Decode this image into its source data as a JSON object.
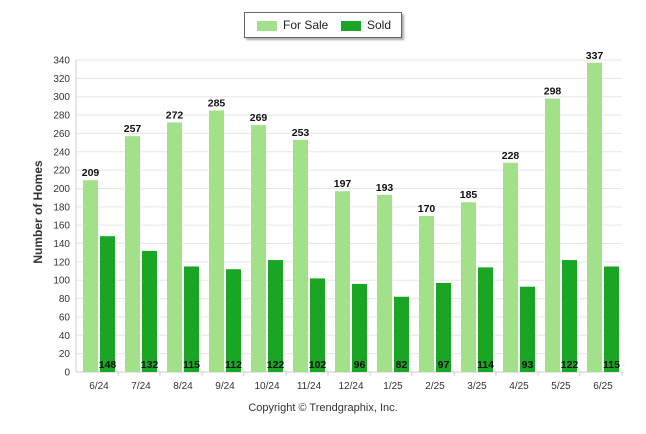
{
  "chart_data": {
    "type": "bar",
    "title": "",
    "ylabel": "Number of Homes",
    "xlabel": "",
    "ylim": [
      0,
      340
    ],
    "yticks": [
      0,
      20,
      40,
      60,
      80,
      100,
      120,
      140,
      160,
      180,
      200,
      220,
      240,
      260,
      280,
      300,
      320,
      340
    ],
    "grid": true,
    "legend_position": "top-center",
    "categories": [
      "6/24",
      "7/24",
      "8/24",
      "9/24",
      "10/24",
      "11/24",
      "12/24",
      "1/25",
      "2/25",
      "3/25",
      "4/25",
      "5/25",
      "6/25"
    ],
    "series": [
      {
        "name": "For Sale",
        "color": "#a3e08a",
        "values": [
          209,
          257,
          272,
          285,
          269,
          253,
          197,
          193,
          170,
          185,
          228,
          298,
          337
        ]
      },
      {
        "name": "Sold",
        "color": "#1aa524",
        "values": [
          148,
          132,
          115,
          112,
          122,
          102,
          96,
          82,
          97,
          114,
          93,
          122,
          115
        ]
      }
    ]
  },
  "legend": {
    "for_sale_label": "For Sale",
    "sold_label": "Sold"
  },
  "footer": {
    "copyright": "Copyright © Trendgraphix, Inc."
  }
}
